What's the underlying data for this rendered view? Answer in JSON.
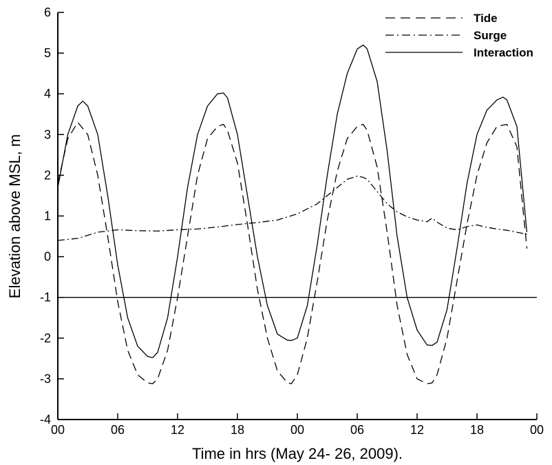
{
  "chart_data": {
    "type": "line",
    "xlabel": "Time in hrs (May 24- 26, 2009).",
    "ylabel": "Elevation above MSL, m",
    "xlim": [
      0,
      48
    ],
    "ylim": [
      -4,
      6
    ],
    "x_ticks": [
      0,
      6,
      12,
      18,
      24,
      30,
      36,
      42,
      48
    ],
    "x_tick_labels": [
      "00",
      "06",
      "12",
      "18",
      "00",
      "06",
      "12",
      "18",
      "00"
    ],
    "y_ticks": [
      -4,
      -3,
      -2,
      -1,
      0,
      1,
      2,
      3,
      4,
      5,
      6
    ],
    "y_tick_labels": [
      "-4",
      "-3",
      "-2",
      "-1",
      "0",
      "1",
      "2",
      "3",
      "4",
      "5",
      "6"
    ],
    "grid": false,
    "legend_position": "top-right",
    "series": [
      {
        "name": "Tide",
        "style": "dashed",
        "color": "#000000",
        "x": [
          0,
          1,
          2,
          3,
          4,
          5,
          6,
          7,
          8,
          9,
          9.5,
          10,
          11,
          12,
          13,
          14,
          15,
          16,
          16.6,
          17,
          18,
          19,
          20,
          21,
          22,
          23,
          23.4,
          24,
          25,
          26,
          27,
          28,
          29,
          30,
          30.6,
          31,
          32,
          33,
          34,
          35,
          36,
          37,
          37.5,
          38,
          39,
          40,
          41,
          42,
          43,
          44,
          45,
          46,
          47
        ],
        "y": [
          1.8,
          2.9,
          3.3,
          3.0,
          2.0,
          0.5,
          -1.1,
          -2.3,
          -2.9,
          -3.1,
          -3.12,
          -3.0,
          -2.3,
          -1.0,
          0.5,
          2.0,
          2.9,
          3.2,
          3.25,
          3.1,
          2.3,
          0.8,
          -0.8,
          -2.0,
          -2.8,
          -3.1,
          -3.12,
          -2.9,
          -2.0,
          -0.6,
          0.9,
          2.1,
          2.9,
          3.2,
          3.25,
          3.1,
          2.2,
          0.6,
          -1.2,
          -2.4,
          -3.0,
          -3.12,
          -3.1,
          -2.9,
          -2.0,
          -0.6,
          0.8,
          2.0,
          2.8,
          3.2,
          3.25,
          2.7,
          0.2
        ]
      },
      {
        "name": "Surge",
        "style": "dashdot",
        "color": "#000000",
        "x": [
          0,
          2,
          4,
          6,
          8,
          10,
          12,
          14,
          16,
          18,
          20,
          22,
          24,
          26,
          28,
          29,
          30,
          30.6,
          31,
          32,
          33,
          34,
          35,
          36,
          37,
          37.5,
          38,
          39,
          40,
          41,
          42,
          43,
          44,
          45,
          46,
          47
        ],
        "y": [
          0.4,
          0.45,
          0.6,
          0.66,
          0.64,
          0.63,
          0.66,
          0.68,
          0.73,
          0.79,
          0.84,
          0.9,
          1.05,
          1.3,
          1.7,
          1.9,
          1.98,
          1.95,
          1.9,
          1.6,
          1.3,
          1.1,
          0.98,
          0.9,
          0.86,
          0.95,
          0.85,
          0.7,
          0.66,
          0.74,
          0.78,
          0.72,
          0.68,
          0.65,
          0.6,
          0.55
        ]
      },
      {
        "name": "Interaction",
        "style": "solid",
        "color": "#000000",
        "x": [
          0,
          1,
          2,
          2.5,
          3,
          4,
          5,
          6,
          7,
          8,
          9,
          9.5,
          10,
          11,
          12,
          13,
          14,
          15,
          16,
          16.6,
          17,
          18,
          19,
          20,
          21,
          22,
          23,
          23.4,
          24,
          25,
          26,
          27,
          28,
          29,
          30,
          30.6,
          31,
          32,
          33,
          34,
          35,
          36,
          37,
          37.5,
          38,
          39,
          40,
          41,
          42,
          43,
          44,
          44.6,
          45,
          46,
          47
        ],
        "y": [
          1.7,
          3.0,
          3.7,
          3.82,
          3.7,
          3.0,
          1.5,
          -0.2,
          -1.5,
          -2.2,
          -2.45,
          -2.48,
          -2.35,
          -1.5,
          0.0,
          1.7,
          3.0,
          3.7,
          4.0,
          4.02,
          3.9,
          3.0,
          1.5,
          0.0,
          -1.2,
          -1.9,
          -2.05,
          -2.06,
          -2.0,
          -1.2,
          0.3,
          2.0,
          3.5,
          4.5,
          5.1,
          5.2,
          5.1,
          4.3,
          2.6,
          0.5,
          -1.0,
          -1.8,
          -2.17,
          -2.18,
          -2.1,
          -1.3,
          0.2,
          1.8,
          3.0,
          3.6,
          3.85,
          3.92,
          3.85,
          3.2,
          0.6
        ]
      },
      {
        "name": "",
        "style": "solid",
        "color": "#000000",
        "x": [
          0,
          48
        ],
        "y": [
          -1,
          -1
        ]
      }
    ]
  }
}
